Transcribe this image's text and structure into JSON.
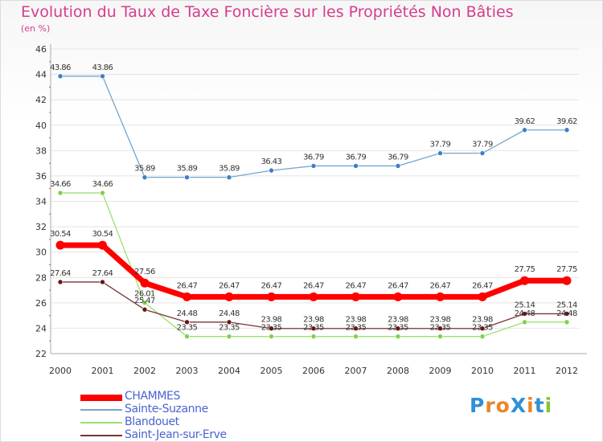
{
  "header": {
    "title": "Evolution du Taux de Taxe Foncière sur les Propriétés Non Bâties",
    "unit": "(en %)"
  },
  "chart_data": {
    "type": "line",
    "title": "Evolution du Taux de Taxe Foncière sur les Propriétés Non Bâties",
    "ylabel": "(en %)",
    "xlabel": "",
    "x": [
      "2000",
      "2001",
      "2002",
      "2003",
      "2004",
      "2005",
      "2006",
      "2007",
      "2008",
      "2009",
      "2010",
      "2011",
      "2012"
    ],
    "ylim": [
      22,
      46
    ],
    "yticks": [
      22,
      24,
      26,
      28,
      30,
      32,
      34,
      36,
      38,
      40,
      42,
      44,
      46
    ],
    "grid": "horizontal",
    "legend_position": "bottom-left",
    "series": [
      {
        "name": "CHAMMES",
        "color": "#ff0000",
        "marker": "#ff0000",
        "values": [
          30.54,
          30.54,
          27.56,
          26.47,
          26.47,
          26.47,
          26.47,
          26.47,
          26.47,
          26.47,
          26.47,
          27.75,
          27.75
        ]
      },
      {
        "name": "Sainte-Suzanne",
        "color": "#74a6d0",
        "marker": "#3c7fc8",
        "values": [
          43.86,
          43.86,
          35.89,
          35.89,
          35.89,
          36.43,
          36.79,
          36.79,
          36.79,
          37.79,
          37.79,
          39.62,
          39.62
        ]
      },
      {
        "name": "Blandouet",
        "color": "#9be06e",
        "marker": "#80d04c",
        "values": [
          34.66,
          34.66,
          26.01,
          23.35,
          23.35,
          23.35,
          23.35,
          23.35,
          23.35,
          23.35,
          23.35,
          24.48,
          24.48
        ]
      },
      {
        "name": "Saint-Jean-sur-Erve",
        "color": "#7a3434",
        "marker": "#6a1414",
        "values": [
          27.64,
          27.64,
          25.47,
          24.48,
          24.48,
          23.98,
          23.98,
          23.98,
          23.98,
          23.98,
          23.98,
          25.14,
          25.14
        ]
      }
    ]
  },
  "logo": {
    "text": "ProXiti"
  }
}
